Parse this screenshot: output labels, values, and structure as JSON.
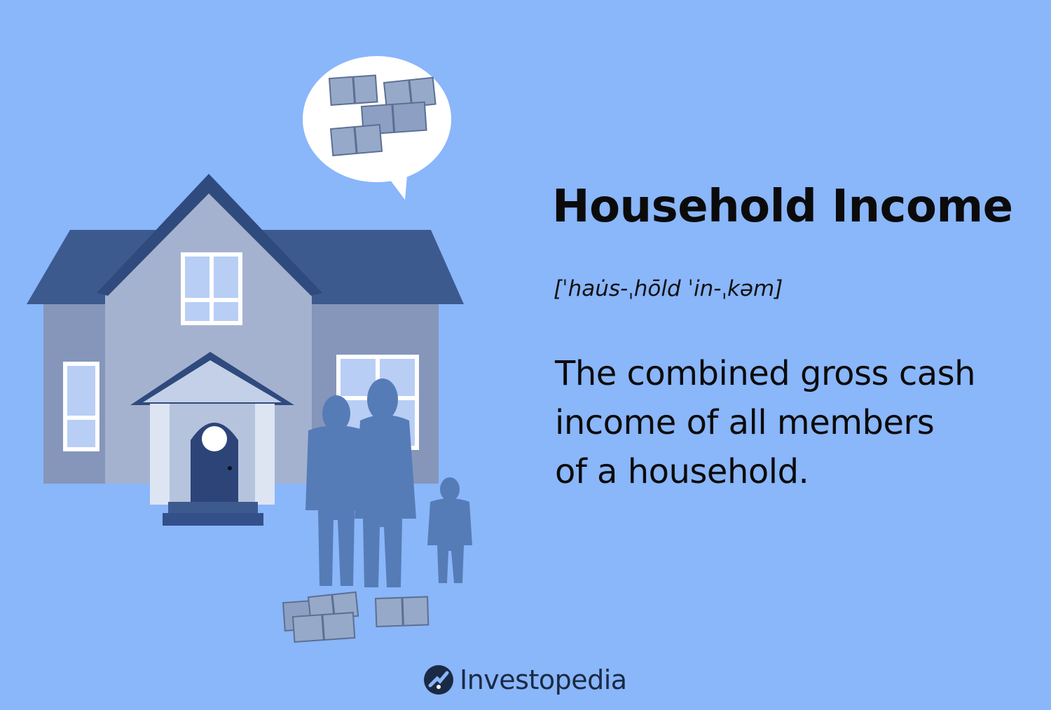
{
  "title": "Household Income",
  "pronunciation": "[ˈhau̇s-ˌhōld ˈin-ˌkəm]",
  "definition_lines": [
    "The combined gross cash",
    "income of all members",
    "of a household."
  ],
  "brand": {
    "name": "Investopedia",
    "logo_icon": "investopedia-logo-icon"
  },
  "colors": {
    "background": "#8ab6fa",
    "roof": "#3f5c90",
    "house_wall": "#9aa9c8",
    "people": "#557cb6",
    "text": "#0b0b0b",
    "brand_navy": "#1a2a44"
  }
}
